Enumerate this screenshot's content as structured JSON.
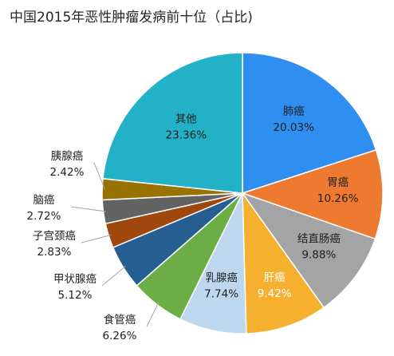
{
  "chart_data": {
    "type": "pie",
    "title": "中国2015年恶性肿瘤发病前十位（占比)",
    "start": "12 o'clock",
    "direction": "clockwise",
    "slices": [
      {
        "label": "肺癌",
        "value": 20.03,
        "value_label": "20.03%",
        "color": "#2e8ff0",
        "label_color": "#1f1f1f",
        "placement": "inside"
      },
      {
        "label": "胃癌",
        "value": 10.26,
        "value_label": "10.26%",
        "color": "#ee7a30",
        "label_color": "#1f1f1f",
        "placement": "inside"
      },
      {
        "label": "结直肠癌",
        "value": 9.88,
        "value_label": "9.88%",
        "color": "#a4a4a4",
        "label_color": "#1f1f1f",
        "placement": "inside"
      },
      {
        "label": "肝癌",
        "value": 9.42,
        "value_label": "9.42%",
        "color": "#f5b030",
        "label_color": "#ffffff",
        "placement": "inside"
      },
      {
        "label": "乳腺癌",
        "value": 7.74,
        "value_label": "7.74%",
        "color": "#bdd7ee",
        "label_color": "#1f1f1f",
        "placement": "inside"
      },
      {
        "label": "食管癌",
        "value": 6.26,
        "value_label": "6.26%",
        "color": "#6cad45",
        "label_color": "#1f1f1f",
        "placement": "outside"
      },
      {
        "label": "甲状腺癌",
        "value": 5.12,
        "value_label": "5.12%",
        "color": "#265e91",
        "label_color": "#1f1f1f",
        "placement": "outside"
      },
      {
        "label": "子宫颈癌",
        "value": 2.83,
        "value_label": "2.83%",
        "color": "#9e480e",
        "label_color": "#1f1f1f",
        "placement": "outside"
      },
      {
        "label": "脑癌",
        "value": 2.72,
        "value_label": "2.72%",
        "color": "#636363",
        "label_color": "#1f1f1f",
        "placement": "outside"
      },
      {
        "label": "胰腺癌",
        "value": 2.42,
        "value_label": "2.42%",
        "color": "#997300",
        "label_color": "#1f1f1f",
        "placement": "outside"
      },
      {
        "label": "其他",
        "value": 23.36,
        "value_label": "23.36%",
        "color": "#22b1c6",
        "label_color": "#1f1f1f",
        "placement": "inside"
      }
    ]
  }
}
